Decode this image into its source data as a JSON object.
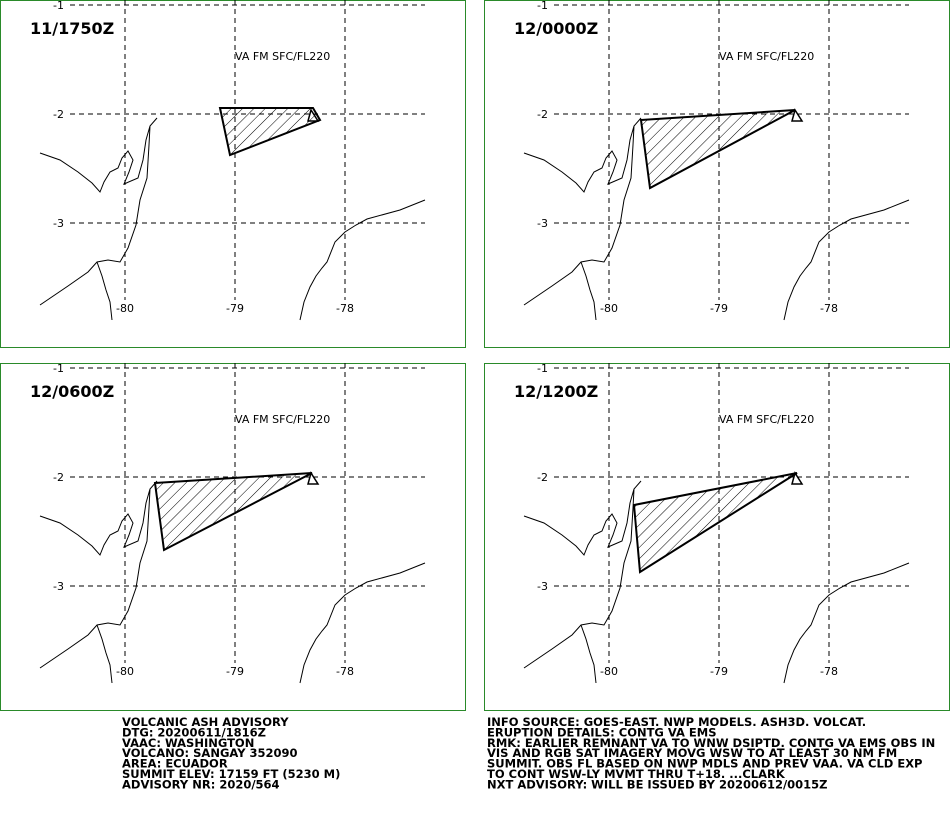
{
  "panels": [
    {
      "time": "11/1750Z",
      "label": "VA FM SFC/FL220",
      "lat_labels": [
        "-1",
        "-2",
        "-3"
      ],
      "lon_labels": [
        "-80",
        "-79",
        "-78"
      ]
    },
    {
      "time": "12/0000Z",
      "label": "VA FM SFC/FL220",
      "lat_labels": [
        "-1",
        "-2",
        "-3"
      ],
      "lon_labels": [
        "-80",
        "-79",
        "-78"
      ]
    },
    {
      "time": "12/0600Z",
      "label": "VA FM SFC/FL220",
      "lat_labels": [
        "-1",
        "-2",
        "-3"
      ],
      "lon_labels": [
        "-80",
        "-79",
        "-78"
      ]
    },
    {
      "time": "12/1200Z",
      "label": "VA FM SFC/FL220",
      "lat_labels": [
        "-1",
        "-2",
        "-3"
      ],
      "lon_labels": [
        "-80",
        "-79",
        "-78"
      ]
    }
  ],
  "left_text": [
    "VOLCANIC ASH ADVISORY",
    "DTG: 20200611/1816Z",
    "VAAC: WASHINGTON",
    "VOLCANO: SANGAY 352090",
    "AREA: ECUADOR",
    "SUMMIT ELEV: 17159 FT (5230 M)",
    "ADVISORY NR: 2020/564"
  ],
  "right_text": [
    "INFO SOURCE: GOES-EAST. NWP MODELS. ASH3D. VOLCAT.",
    "ERUPTION DETAILS: CONTG VA EMS",
    "RMK: EARLIER REMNANT VA TO WNW DSIPTD. CONTG VA EMS OBS IN",
    "VIS AND RGB SAT IMAGERY MOVG WSW TO AT LEAST 30 NM FM",
    "SUMMIT. OBS FL BASED ON NWP MDLS AND PREV VAA. VA CLD EXP",
    "TO CONT WSW-LY MVMT THRU T+18. ...CLARK",
    "NXT ADVISORY: WILL BE ISSUED BY 20200612/0015Z"
  ]
}
